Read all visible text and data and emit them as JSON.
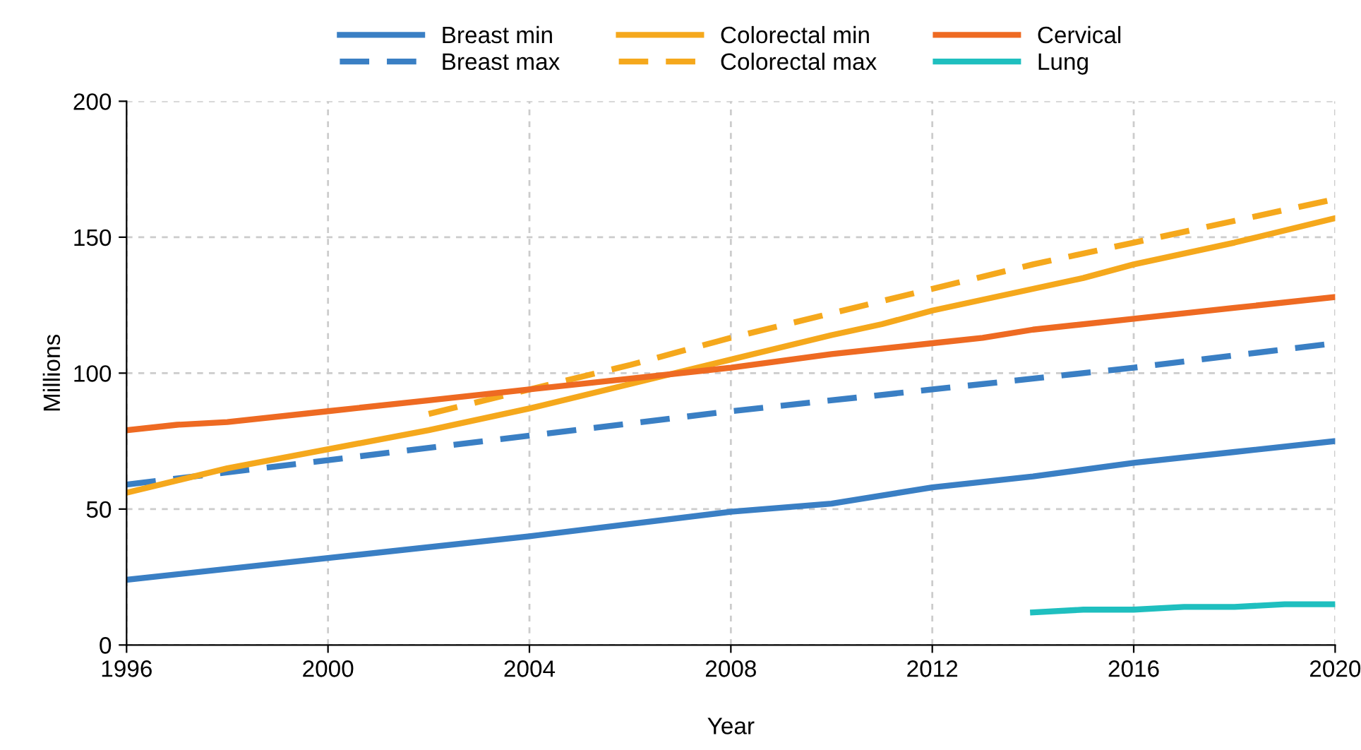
{
  "chart_data": {
    "type": "line",
    "xlabel": "Year",
    "ylabel": "Millions",
    "xlim": [
      1996,
      2020
    ],
    "ylim": [
      0,
      200
    ],
    "xticks": [
      1996,
      2000,
      2004,
      2008,
      2012,
      2016,
      2020
    ],
    "yticks": [
      0,
      50,
      100,
      150,
      200
    ],
    "grid": true,
    "legend": "top",
    "line_style": "solid",
    "marker": "none",
    "series": [
      {
        "name": "Breast min",
        "color": "#3a7fc4",
        "x": [
          1996,
          2000,
          2004,
          2008,
          2010,
          2011,
          2012,
          2014,
          2016,
          2018,
          2020
        ],
        "values": [
          24,
          32,
          40,
          49,
          52,
          55,
          58,
          62,
          67,
          71,
          75
        ]
      },
      {
        "name": "Breast max",
        "color": "#3a7fc4",
        "line_style": "dashed",
        "x": [
          1996,
          2000,
          2004,
          2008,
          2012,
          2016,
          2020
        ],
        "values": [
          59,
          68,
          77,
          86,
          94,
          102,
          111
        ]
      },
      {
        "name": "Colorectal min",
        "color": "#f5a81c",
        "x": [
          1996,
          1998,
          2000,
          2002,
          2004,
          2006,
          2008,
          2010,
          2011,
          2012,
          2014,
          2015,
          2016,
          2018,
          2020
        ],
        "values": [
          56,
          65,
          72,
          79,
          87,
          96,
          105,
          114,
          118,
          123,
          131,
          135,
          140,
          148,
          157
        ]
      },
      {
        "name": "Colorectal max",
        "color": "#f5a81c",
        "line_style": "dashed",
        "x": [
          2002,
          2004,
          2006,
          2008,
          2010,
          2012,
          2014,
          2016,
          2018,
          2020
        ],
        "values": [
          85,
          94,
          103,
          113,
          122,
          131,
          140,
          148,
          156,
          164
        ]
      },
      {
        "name": "Cervical",
        "color": "#ee6a22",
        "x": [
          1996,
          1997,
          1998,
          2000,
          2002,
          2004,
          2006,
          2008,
          2010,
          2012,
          2013,
          2014,
          2016,
          2018,
          2020
        ],
        "values": [
          79,
          81,
          82,
          86,
          90,
          94,
          98,
          102,
          107,
          111,
          113,
          116,
          120,
          124,
          128
        ]
      },
      {
        "name": "Lung",
        "color": "#1fbfbf",
        "x": [
          2014,
          2015,
          2016,
          2017,
          2018,
          2019,
          2020
        ],
        "values": [
          12,
          13,
          13,
          14,
          14,
          15,
          15
        ]
      }
    ]
  }
}
